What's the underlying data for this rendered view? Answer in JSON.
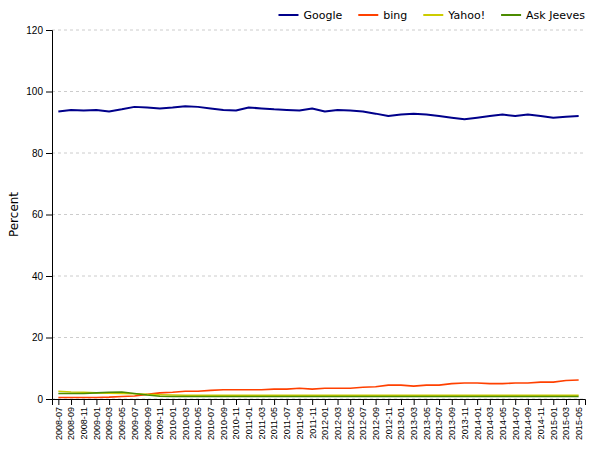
{
  "chart_data": {
    "type": "line",
    "ylabel": "Percent",
    "categories": [
      "2008-07",
      "2008-09",
      "2008-11",
      "2009-01",
      "2009-03",
      "2009-05",
      "2009-07",
      "2009-09",
      "2009-11",
      "2010-01",
      "2010-03",
      "2010-05",
      "2010-07",
      "2010-09",
      "2010-11",
      "2011-01",
      "2011-03",
      "2011-05",
      "2011-07",
      "2011-09",
      "2011-11",
      "2012-01",
      "2012-03",
      "2012-05",
      "2012-07",
      "2012-09",
      "2012-11",
      "2013-01",
      "2013-03",
      "2013-05",
      "2013-07",
      "2013-09",
      "2013-11",
      "2014-01",
      "2014-03",
      "2014-05",
      "2014-07",
      "2014-09",
      "2014-11",
      "2015-01",
      "2015-03",
      "2015-05"
    ],
    "series": [
      {
        "name": "Google",
        "color": "#00008B",
        "values": [
          93.5,
          94.0,
          93.8,
          94.0,
          93.5,
          94.2,
          95.0,
          94.8,
          94.5,
          94.8,
          95.2,
          95.0,
          94.5,
          94.0,
          93.8,
          94.8,
          94.5,
          94.2,
          94.0,
          93.8,
          94.5,
          93.5,
          94.0,
          93.8,
          93.5,
          92.8,
          92.0,
          92.5,
          92.8,
          92.5,
          92.0,
          91.5,
          91.0,
          91.5,
          92.0,
          92.5,
          92.0,
          92.5,
          92.0,
          91.5,
          91.8,
          92.0
        ]
      },
      {
        "name": "bing",
        "color": "#FF4000",
        "values": [
          0.5,
          0.5,
          0.5,
          0.5,
          0.6,
          0.8,
          1.0,
          1.5,
          2.0,
          2.2,
          2.5,
          2.5,
          2.8,
          3.0,
          3.0,
          3.0,
          3.0,
          3.2,
          3.2,
          3.5,
          3.2,
          3.5,
          3.5,
          3.5,
          3.8,
          4.0,
          4.5,
          4.5,
          4.2,
          4.5,
          4.5,
          5.0,
          5.2,
          5.2,
          5.0,
          5.0,
          5.2,
          5.2,
          5.5,
          5.5,
          6.0,
          6.2
        ]
      },
      {
        "name": "Yahoo!",
        "color": "#CCCC00",
        "values": [
          2.5,
          2.3,
          2.2,
          2.0,
          1.9,
          1.8,
          1.7,
          1.5,
          1.4,
          1.3,
          1.2,
          1.2,
          1.2,
          1.2,
          1.2,
          1.2,
          1.2,
          1.2,
          1.2,
          1.2,
          1.2,
          1.2,
          1.2,
          1.2,
          1.2,
          1.2,
          1.2,
          1.2,
          1.2,
          1.2,
          1.2,
          1.2,
          1.2,
          1.2,
          1.2,
          1.2,
          1.2,
          1.2,
          1.2,
          1.2,
          1.2,
          1.2
        ]
      },
      {
        "name": "Ask Jeeves",
        "color": "#4B8B00",
        "values": [
          1.8,
          1.8,
          1.8,
          2.0,
          2.2,
          2.3,
          1.8,
          1.3,
          0.9,
          0.8,
          0.8,
          0.8,
          0.8,
          0.8,
          0.8,
          0.8,
          0.8,
          0.8,
          0.8,
          0.8,
          0.8,
          0.8,
          0.8,
          0.8,
          0.8,
          0.8,
          0.8,
          0.8,
          0.8,
          0.8,
          0.8,
          0.8,
          0.8,
          0.8,
          0.8,
          0.8,
          0.8,
          0.8,
          0.8,
          0.8,
          0.8,
          0.8
        ]
      }
    ],
    "ylim": [
      0,
      120
    ],
    "yticks": [
      0,
      20,
      40,
      60,
      80,
      100,
      120
    ],
    "grid": true,
    "legend": "upper right"
  }
}
